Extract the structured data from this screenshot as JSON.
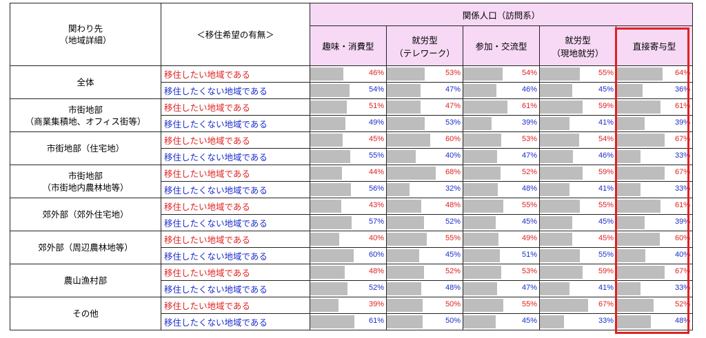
{
  "header": {
    "region_col": "関わり先\n（地域詳細）",
    "wish_col": "＜移住希望の有無＞",
    "group": "関係人口（訪問系）",
    "categories": [
      "趣味・消費型",
      "就労型\n（テレワーク）",
      "参加・交流型",
      "就労型\n（現地就労）",
      "直接寄与型"
    ]
  },
  "labels": {
    "yes": "移住したい地域である",
    "no": "移住したくない地域である"
  },
  "colors": {
    "yes": "#e02020",
    "no": "#1a2ccc",
    "bar": "#bdbdbd",
    "header": "#f7d9f5",
    "highlight": "#e02020"
  },
  "chart_data": {
    "type": "table",
    "unit": "%",
    "highlighted_category": "直接寄与型",
    "categories": [
      "趣味・消費型",
      "就労型（テレワーク）",
      "参加・交流型",
      "就労型（現地就労）",
      "直接寄与型"
    ],
    "rows": [
      {
        "region": "全体",
        "yes": [
          46,
          53,
          54,
          55,
          64
        ],
        "no": [
          54,
          47,
          46,
          45,
          36
        ]
      },
      {
        "region": "市街地部\n（商業集積地、オフィス街等）",
        "yes": [
          51,
          47,
          61,
          59,
          61
        ],
        "no": [
          49,
          53,
          39,
          41,
          39
        ]
      },
      {
        "region": "市街地部（住宅地）",
        "yes": [
          45,
          60,
          53,
          54,
          67
        ],
        "no": [
          55,
          40,
          47,
          46,
          33
        ]
      },
      {
        "region": "市街地部\n（市街地内農林地等）",
        "yes": [
          44,
          68,
          52,
          59,
          67
        ],
        "no": [
          56,
          32,
          48,
          41,
          33
        ]
      },
      {
        "region": "郊外部（郊外住宅地）",
        "yes": [
          43,
          48,
          55,
          55,
          61
        ],
        "no": [
          57,
          52,
          45,
          45,
          39
        ]
      },
      {
        "region": "郊外部（周辺農林地等）",
        "yes": [
          40,
          55,
          49,
          45,
          60
        ],
        "no": [
          60,
          45,
          51,
          55,
          40
        ]
      },
      {
        "region": "農山漁村部",
        "yes": [
          48,
          52,
          53,
          59,
          67
        ],
        "no": [
          52,
          48,
          47,
          41,
          33
        ]
      },
      {
        "region": "その他",
        "yes": [
          39,
          50,
          55,
          67,
          52
        ],
        "no": [
          61,
          50,
          45,
          33,
          48
        ]
      }
    ]
  }
}
